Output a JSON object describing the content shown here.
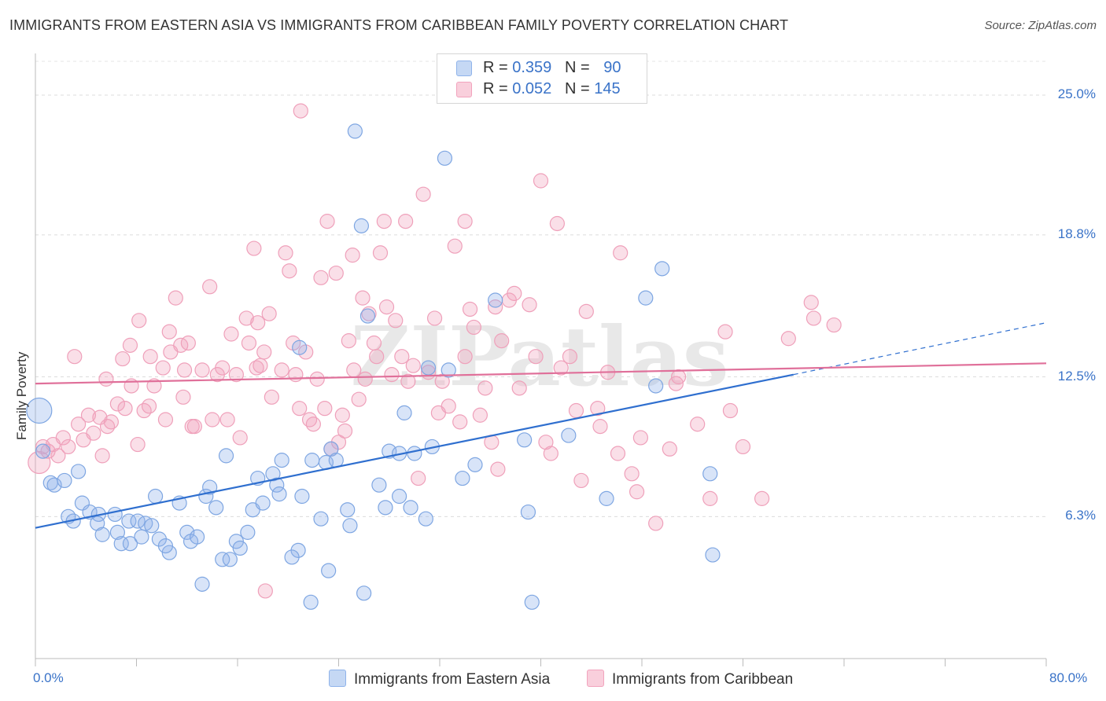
{
  "title": "IMMIGRANTS FROM EASTERN ASIA VS IMMIGRANTS FROM CARIBBEAN FAMILY POVERTY CORRELATION CHART",
  "source": "Source: ZipAtlas.com",
  "watermark": "ZIPatlas",
  "colors": {
    "blue": "#8fb3ea",
    "blue_line": "#2f6fcf",
    "pink": "#f2a3bd",
    "pink_line": "#e0709a",
    "axis_text": "#3a73c8"
  },
  "legend_top": {
    "rows": [
      {
        "r_label": "R =",
        "r_value": "0.359",
        "n_label": "N =",
        "n_value": "90"
      },
      {
        "r_label": "R =",
        "r_value": "0.052",
        "n_label": "N =",
        "n_value": "145"
      }
    ]
  },
  "chart_data": {
    "type": "scatter",
    "title": "IMMIGRANTS FROM EASTERN ASIA VS IMMIGRANTS FROM CARIBBEAN FAMILY POVERTY CORRELATION CHART",
    "xlabel": "",
    "ylabel": "Family Poverty",
    "xlim": [
      0,
      80
    ],
    "ylim": [
      0,
      26.5
    ],
    "x_ticks": [
      "0.0%",
      "80.0%"
    ],
    "y_ticks": [
      "6.3%",
      "12.5%",
      "18.8%",
      "25.0%"
    ],
    "y_tick_values": [
      6.3,
      12.5,
      18.8,
      25.0
    ],
    "grid": true,
    "legend_position": "bottom",
    "series": [
      {
        "name": "Immigrants from Eastern Asia",
        "color": "#8fb3ea",
        "r": 0.359,
        "n": 90,
        "trend": {
          "x0": 0,
          "y0": 5.8,
          "x1": 60,
          "y1": 12.6,
          "dashed_to_x": 80,
          "dashed_to_y": 14.9
        },
        "points": [
          [
            0.3,
            11.0
          ],
          [
            0.6,
            9.2
          ],
          [
            1.2,
            7.8
          ],
          [
            1.5,
            7.7
          ],
          [
            2.3,
            7.9
          ],
          [
            3.4,
            8.3
          ],
          [
            2.6,
            6.3
          ],
          [
            3.0,
            6.1
          ],
          [
            3.7,
            6.9
          ],
          [
            4.3,
            6.5
          ],
          [
            5.0,
            6.4
          ],
          [
            4.9,
            6.0
          ],
          [
            5.3,
            5.5
          ],
          [
            6.3,
            6.4
          ],
          [
            6.5,
            5.6
          ],
          [
            6.8,
            5.1
          ],
          [
            7.5,
            5.1
          ],
          [
            7.4,
            6.1
          ],
          [
            8.1,
            6.1
          ],
          [
            8.4,
            5.4
          ],
          [
            8.7,
            6.0
          ],
          [
            9.2,
            5.9
          ],
          [
            9.5,
            7.2
          ],
          [
            9.8,
            5.3
          ],
          [
            10.6,
            4.7
          ],
          [
            10.3,
            5.0
          ],
          [
            11.4,
            6.9
          ],
          [
            12.0,
            5.6
          ],
          [
            12.3,
            5.2
          ],
          [
            12.8,
            5.4
          ],
          [
            13.2,
            3.3
          ],
          [
            13.5,
            7.2
          ],
          [
            13.8,
            7.6
          ],
          [
            14.3,
            6.7
          ],
          [
            14.8,
            4.4
          ],
          [
            15.1,
            9.0
          ],
          [
            15.4,
            4.4
          ],
          [
            15.9,
            5.2
          ],
          [
            16.2,
            4.9
          ],
          [
            16.8,
            5.6
          ],
          [
            17.2,
            6.6
          ],
          [
            17.6,
            8.0
          ],
          [
            18.0,
            6.9
          ],
          [
            18.8,
            8.2
          ],
          [
            19.1,
            7.7
          ],
          [
            19.5,
            8.8
          ],
          [
            19.3,
            7.3
          ],
          [
            20.8,
            4.8
          ],
          [
            20.9,
            13.8
          ],
          [
            20.3,
            4.5
          ],
          [
            21.1,
            7.2
          ],
          [
            21.8,
            2.5
          ],
          [
            21.9,
            8.8
          ],
          [
            22.6,
            6.2
          ],
          [
            23.0,
            8.7
          ],
          [
            23.2,
            3.9
          ],
          [
            23.4,
            9.3
          ],
          [
            23.8,
            8.8
          ],
          [
            24.7,
            6.6
          ],
          [
            24.9,
            5.9
          ],
          [
            25.3,
            23.4
          ],
          [
            25.8,
            19.2
          ],
          [
            26.0,
            2.9
          ],
          [
            26.3,
            15.2
          ],
          [
            27.2,
            7.7
          ],
          [
            27.7,
            6.7
          ],
          [
            28.0,
            9.2
          ],
          [
            28.8,
            7.2
          ],
          [
            28.8,
            9.1
          ],
          [
            29.2,
            10.9
          ],
          [
            29.7,
            6.7
          ],
          [
            30.0,
            9.1
          ],
          [
            30.9,
            6.2
          ],
          [
            31.1,
            12.9
          ],
          [
            31.4,
            9.4
          ],
          [
            32.4,
            22.2
          ],
          [
            32.7,
            12.8
          ],
          [
            33.8,
            8.0
          ],
          [
            34.8,
            8.6
          ],
          [
            36.4,
            15.9
          ],
          [
            38.7,
            9.7
          ],
          [
            39.0,
            6.5
          ],
          [
            39.3,
            2.5
          ],
          [
            42.2,
            9.9
          ],
          [
            45.2,
            7.1
          ],
          [
            48.3,
            16.0
          ],
          [
            49.6,
            17.3
          ],
          [
            53.6,
            4.6
          ],
          [
            49.1,
            12.1
          ],
          [
            53.4,
            8.2
          ]
        ]
      },
      {
        "name": "Immigrants from Caribbean",
        "color": "#f2a3bd",
        "r": 0.052,
        "n": 145,
        "trend": {
          "x0": 0,
          "y0": 12.2,
          "x1": 80,
          "y1": 13.1
        },
        "points": [
          [
            0.3,
            8.7
          ],
          [
            0.6,
            9.4
          ],
          [
            1.0,
            9.2
          ],
          [
            1.4,
            9.5
          ],
          [
            1.8,
            9.0
          ],
          [
            2.2,
            9.8
          ],
          [
            2.6,
            9.4
          ],
          [
            3.1,
            13.4
          ],
          [
            3.4,
            10.4
          ],
          [
            3.8,
            9.7
          ],
          [
            4.2,
            10.8
          ],
          [
            4.6,
            10.0
          ],
          [
            5.1,
            10.7
          ],
          [
            5.3,
            9.0
          ],
          [
            5.7,
            10.3
          ],
          [
            6.0,
            10.5
          ],
          [
            6.5,
            11.3
          ],
          [
            6.9,
            13.3
          ],
          [
            7.1,
            11.1
          ],
          [
            7.6,
            12.1
          ],
          [
            7.5,
            13.9
          ],
          [
            8.1,
            9.5
          ],
          [
            8.2,
            15.0
          ],
          [
            8.6,
            11.0
          ],
          [
            9.0,
            11.2
          ],
          [
            9.1,
            13.4
          ],
          [
            9.4,
            12.1
          ],
          [
            10.1,
            12.9
          ],
          [
            10.7,
            13.6
          ],
          [
            10.6,
            14.5
          ],
          [
            10.3,
            10.6
          ],
          [
            11.1,
            16.0
          ],
          [
            11.5,
            13.9
          ],
          [
            11.8,
            12.8
          ],
          [
            12.1,
            14.0
          ],
          [
            12.4,
            10.3
          ],
          [
            12.6,
            10.3
          ],
          [
            13.2,
            12.8
          ],
          [
            13.8,
            16.5
          ],
          [
            14.0,
            10.6
          ],
          [
            14.4,
            12.6
          ],
          [
            14.8,
            12.9
          ],
          [
            15.2,
            10.6
          ],
          [
            15.5,
            14.4
          ],
          [
            15.9,
            12.6
          ],
          [
            16.2,
            9.8
          ],
          [
            16.7,
            15.1
          ],
          [
            16.9,
            14.0
          ],
          [
            17.3,
            18.2
          ],
          [
            17.5,
            12.9
          ],
          [
            17.6,
            14.9
          ],
          [
            17.8,
            13.0
          ],
          [
            18.1,
            13.6
          ],
          [
            18.5,
            15.3
          ],
          [
            18.7,
            11.6
          ],
          [
            19.5,
            12.8
          ],
          [
            19.8,
            18.0
          ],
          [
            20.1,
            17.2
          ],
          [
            20.4,
            14.0
          ],
          [
            20.6,
            12.6
          ],
          [
            20.9,
            11.1
          ],
          [
            21.4,
            13.6
          ],
          [
            21.7,
            10.6
          ],
          [
            22.0,
            10.4
          ],
          [
            22.3,
            12.4
          ],
          [
            22.6,
            16.9
          ],
          [
            22.9,
            11.1
          ],
          [
            23.1,
            19.4
          ],
          [
            23.4,
            9.3
          ],
          [
            23.8,
            17.1
          ],
          [
            24.0,
            9.6
          ],
          [
            24.3,
            10.8
          ],
          [
            24.5,
            10.1
          ],
          [
            24.8,
            14.1
          ],
          [
            25.1,
            17.9
          ],
          [
            25.2,
            12.8
          ],
          [
            25.6,
            11.5
          ],
          [
            25.9,
            16.0
          ],
          [
            26.1,
            12.4
          ],
          [
            26.4,
            15.3
          ],
          [
            26.8,
            14.0
          ],
          [
            27.0,
            13.4
          ],
          [
            27.3,
            18.0
          ],
          [
            27.6,
            19.4
          ],
          [
            27.8,
            15.6
          ],
          [
            28.2,
            12.6
          ],
          [
            28.5,
            15.0
          ],
          [
            29.0,
            13.4
          ],
          [
            29.5,
            12.3
          ],
          [
            29.9,
            13.0
          ],
          [
            30.3,
            8.0
          ],
          [
            30.7,
            20.6
          ],
          [
            31.1,
            12.7
          ],
          [
            31.6,
            15.1
          ],
          [
            31.9,
            10.9
          ],
          [
            32.2,
            12.3
          ],
          [
            32.7,
            11.2
          ],
          [
            33.2,
            18.3
          ],
          [
            33.6,
            10.5
          ],
          [
            34.0,
            13.4
          ],
          [
            34.4,
            15.5
          ],
          [
            34.7,
            14.7
          ],
          [
            35.2,
            10.8
          ],
          [
            35.6,
            12.0
          ],
          [
            36.1,
            9.6
          ],
          [
            36.4,
            15.6
          ],
          [
            36.6,
            8.4
          ],
          [
            36.9,
            14.1
          ],
          [
            37.5,
            15.9
          ],
          [
            37.9,
            16.2
          ],
          [
            38.3,
            12.0
          ],
          [
            39.1,
            15.7
          ],
          [
            39.6,
            13.4
          ],
          [
            40.0,
            21.2
          ],
          [
            40.4,
            9.6
          ],
          [
            40.8,
            9.1
          ],
          [
            41.6,
            12.9
          ],
          [
            42.3,
            13.4
          ],
          [
            42.8,
            11.0
          ],
          [
            43.2,
            7.9
          ],
          [
            43.6,
            15.4
          ],
          [
            44.5,
            11.1
          ],
          [
            44.7,
            10.3
          ],
          [
            45.3,
            12.7
          ],
          [
            46.1,
            9.1
          ],
          [
            46.3,
            18.0
          ],
          [
            47.2,
            8.2
          ],
          [
            47.6,
            7.4
          ],
          [
            47.9,
            9.8
          ],
          [
            49.1,
            6.0
          ],
          [
            50.2,
            9.3
          ],
          [
            50.7,
            12.2
          ],
          [
            50.9,
            12.5
          ],
          [
            52.4,
            10.4
          ],
          [
            53.4,
            7.1
          ],
          [
            54.6,
            14.5
          ],
          [
            55.0,
            11.0
          ],
          [
            56.0,
            9.4
          ],
          [
            57.5,
            7.1
          ],
          [
            59.6,
            14.2
          ],
          [
            61.4,
            15.8
          ],
          [
            61.6,
            15.1
          ],
          [
            63.2,
            14.8
          ],
          [
            18.2,
            3.0
          ],
          [
            21.0,
            24.3
          ],
          [
            29.3,
            19.4
          ],
          [
            34.0,
            19.4
          ],
          [
            41.3,
            19.3
          ],
          [
            5.6,
            12.4
          ],
          [
            11.7,
            11.6
          ]
        ]
      }
    ]
  }
}
